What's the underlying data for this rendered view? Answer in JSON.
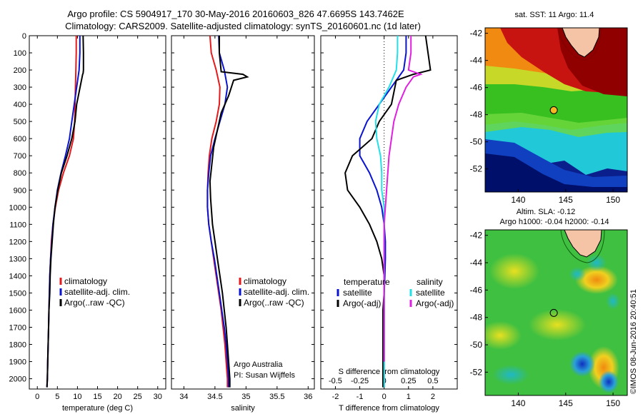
{
  "figure": {
    "title_line1": "Argo profile: CS 5904917_170 30-May-2016 20160603_826 47.6695S 143.7462E",
    "title_line2": "Climatology: CARS2009. Satellite-adjusted climatology: synTS_20160601.nc (1d later)",
    "credit": "©IMOS 08-Jun-2016 20:40:51",
    "colors": {
      "climatology": "#e41a1c",
      "satellite": "#0a14d0",
      "argo": "#000000",
      "satellite_s": "#22e0e8",
      "argo_s": "#e020e0"
    }
  },
  "chart_data": [
    {
      "type": "line",
      "xlabel": "temperature (deg C)",
      "xlim": [
        -2,
        32
      ],
      "xticks": [
        0,
        5,
        10,
        15,
        20,
        25,
        30
      ],
      "ylim": [
        2060,
        0
      ],
      "yticks": [
        0,
        100,
        200,
        300,
        400,
        500,
        600,
        700,
        800,
        900,
        1000,
        1100,
        1200,
        1300,
        1400,
        1500,
        1600,
        1700,
        1800,
        1900,
        2000
      ],
      "y_reversed": true,
      "legend_placement": "lower-left",
      "legend": [
        "climatology",
        "satellite-adj. clim.",
        "Argo(..raw -QC)"
      ],
      "series": [
        {
          "name": "climatology",
          "color": "#e41a1c",
          "x": [
            9.7,
            9.7,
            9.6,
            9.5,
            9.4,
            9.3,
            9.0,
            8.0,
            6.5,
            5.3,
            4.5,
            3.9,
            3.5,
            3.3,
            3.1,
            3.0,
            2.9,
            2.8,
            2.7,
            2.6,
            2.5,
            2.4
          ],
          "y": [
            0,
            100,
            200,
            300,
            400,
            500,
            600,
            700,
            800,
            900,
            1000,
            1100,
            1200,
            1300,
            1400,
            1500,
            1600,
            1700,
            1800,
            1900,
            2000,
            2050
          ]
        },
        {
          "name": "satellite-adj. clim.",
          "color": "#0a14d0",
          "x": [
            10.6,
            10.6,
            10.4,
            9.8,
            9.2,
            8.6,
            8.0,
            7.0,
            5.9,
            5.0,
            4.4,
            3.9,
            3.6,
            3.3,
            3.1,
            3.0,
            2.9,
            2.8,
            2.7,
            2.6,
            2.5,
            2.4
          ],
          "y": [
            0,
            100,
            200,
            300,
            400,
            500,
            600,
            700,
            800,
            900,
            1000,
            1100,
            1200,
            1300,
            1400,
            1500,
            1600,
            1700,
            1800,
            1900,
            2000,
            2050
          ]
        },
        {
          "name": "Argo(..raw -QC)",
          "color": "#000000",
          "x": [
            11.4,
            11.5,
            11.5,
            11.4,
            11.3,
            9.8,
            9.4,
            8.6,
            7.4,
            6.0,
            5.1,
            4.4,
            4.0,
            3.7,
            3.4,
            3.2,
            3.1,
            2.9,
            2.8,
            2.7,
            2.6,
            2.5,
            2.4
          ],
          "y": [
            0,
            100,
            200,
            220,
            225,
            400,
            500,
            600,
            700,
            800,
            900,
            1000,
            1100,
            1200,
            1300,
            1400,
            1500,
            1600,
            1700,
            1800,
            1900,
            2000,
            2050
          ]
        }
      ]
    },
    {
      "type": "line",
      "xlabel": "salinity",
      "xlim": [
        33.8,
        36.1
      ],
      "xticks": [
        34,
        34.5,
        35,
        35.5,
        36
      ],
      "ylim": [
        2060,
        0
      ],
      "y_reversed": true,
      "legend_placement": "lower-right",
      "legend": [
        "climatology",
        "satellite-adj. clim.",
        "Argo(..raw -QC)"
      ],
      "annotation": [
        "Argo Australia",
        "PI: Susan Wijffels"
      ],
      "series": [
        {
          "name": "climatology",
          "color": "#e41a1c",
          "x": [
            34.42,
            34.44,
            34.52,
            34.58,
            34.57,
            34.52,
            34.45,
            34.41,
            34.39,
            34.38,
            34.38,
            34.4,
            34.44,
            34.48,
            34.52,
            34.56,
            34.6,
            34.63,
            34.66,
            34.68,
            34.7,
            34.7
          ],
          "y": [
            0,
            100,
            200,
            300,
            400,
            500,
            600,
            700,
            800,
            900,
            1000,
            1100,
            1200,
            1300,
            1400,
            1500,
            1600,
            1700,
            1800,
            1900,
            2000,
            2050
          ]
        },
        {
          "name": "satellite-adj. clim.",
          "color": "#0a14d0",
          "x": [
            34.56,
            34.57,
            34.65,
            34.7,
            34.66,
            34.58,
            34.5,
            34.43,
            34.4,
            34.38,
            34.38,
            34.4,
            34.44,
            34.49,
            34.53,
            34.57,
            34.61,
            34.65,
            34.68,
            34.7,
            34.72,
            34.72
          ],
          "y": [
            0,
            100,
            200,
            300,
            400,
            500,
            600,
            700,
            800,
            900,
            1000,
            1100,
            1200,
            1300,
            1400,
            1500,
            1600,
            1700,
            1800,
            1900,
            2000,
            2050
          ]
        },
        {
          "name": "Argo(..raw -QC)",
          "color": "#000000",
          "x": [
            34.57,
            34.57,
            34.6,
            34.95,
            35.02,
            34.8,
            34.72,
            34.6,
            34.54,
            34.48,
            34.45,
            34.42,
            34.43,
            34.46,
            34.5,
            34.54,
            34.58,
            34.62,
            34.65,
            34.68,
            34.7,
            34.72,
            34.74,
            34.74
          ],
          "y": [
            0,
            100,
            210,
            225,
            240,
            260,
            350,
            450,
            550,
            650,
            750,
            850,
            950,
            1100,
            1200,
            1300,
            1400,
            1500,
            1600,
            1700,
            1800,
            1900,
            2000,
            2050
          ]
        }
      ]
    },
    {
      "type": "line",
      "xlabel": "T difference from climatology",
      "xlabel_top": "S difference from climatology",
      "xlim": [
        -2.6,
        3.0
      ],
      "xticks": [
        -2,
        -1,
        0,
        1,
        2
      ],
      "xticks_top_labels": [
        "-0.5",
        "-0.25",
        "0",
        "0.25",
        "0.5"
      ],
      "xticks_top_at": [
        -2,
        -1,
        0,
        1,
        2
      ],
      "ylim": [
        2060,
        0
      ],
      "y_reversed": true,
      "zero_line": "dotted",
      "legend_placement": "lower-center",
      "legend_temperature_title": "temperature",
      "legend_salinity_title": "salinity",
      "legend_temperature": [
        "satellite",
        "Argo(-adj)"
      ],
      "legend_salinity": [
        "satellite",
        "Argo(-adj)"
      ],
      "series": [
        {
          "name": "temperature satellite",
          "color": "#0a14d0",
          "x": [
            0.9,
            0.9,
            0.8,
            0.3,
            -0.2,
            -0.7,
            -1.0,
            -1.0,
            -0.6,
            -0.3,
            -0.1,
            0.0,
            0.05,
            0.05,
            0.03,
            0.0,
            0.0,
            0.0,
            0.0,
            0.0,
            0.0,
            0.0
          ],
          "y": [
            0,
            100,
            200,
            300,
            400,
            500,
            600,
            700,
            800,
            900,
            1000,
            1100,
            1200,
            1300,
            1400,
            1500,
            1600,
            1700,
            1800,
            1900,
            2000,
            2050
          ]
        },
        {
          "name": "temperature Argo(-adj)",
          "color": "#000000",
          "x": [
            1.7,
            1.8,
            1.9,
            1.2,
            0.5,
            0.3,
            -0.2,
            -0.5,
            -1.3,
            -1.6,
            -1.5,
            -1.0,
            -0.6,
            -0.3,
            -0.1,
            0.0,
            0.0,
            -0.05,
            -0.05,
            -0.05,
            -0.05,
            -0.05,
            -0.05
          ],
          "y": [
            0,
            100,
            200,
            225,
            260,
            400,
            500,
            600,
            700,
            800,
            900,
            1000,
            1100,
            1200,
            1300,
            1400,
            1500,
            1600,
            1700,
            1800,
            1900,
            2000,
            2050
          ]
        },
        {
          "name": "salinity satellite",
          "color": "#22e0e8",
          "x": [
            0.55,
            0.55,
            0.5,
            0.2,
            -0.2,
            -0.35,
            -0.3,
            -0.15,
            -0.1,
            -0.1,
            0.0,
            0.0,
            0.0,
            0.0,
            0.0,
            0.0,
            0.0,
            0.0,
            0.0,
            0.0,
            0.0,
            0.0
          ],
          "y": [
            0,
            100,
            200,
            300,
            400,
            500,
            600,
            700,
            800,
            900,
            1000,
            1100,
            1200,
            1300,
            1400,
            1500,
            1600,
            1700,
            1800,
            1900,
            2000,
            2050
          ]
        },
        {
          "name": "salinity Argo(-adj)",
          "color": "#e020e0",
          "x": [
            1.1,
            1.1,
            1.0,
            1.5,
            1.2,
            0.9,
            0.6,
            0.4,
            0.3,
            0.2,
            0.15,
            0.1,
            0.05,
            0.0,
            0.0,
            0.0,
            0.0,
            0.0,
            0.0,
            0.0,
            0.0,
            0.0
          ],
          "y": [
            0,
            100,
            200,
            225,
            240,
            300,
            400,
            500,
            600,
            700,
            800,
            900,
            1000,
            1100,
            1200,
            1300,
            1400,
            1500,
            1600,
            1700,
            1800,
            1900
          ]
        }
      ]
    },
    {
      "type": "heatmap",
      "title": "sat. SST: 11  Argo: 11.4",
      "xticks": [
        140,
        145,
        150
      ],
      "yticks": [
        -42,
        -44,
        -46,
        -48,
        -50,
        -52
      ],
      "xlim": [
        136.5,
        151.5
      ],
      "ylim": [
        -53.7,
        -41.6
      ],
      "marker": {
        "lon": 143.7462,
        "lat": -47.6695,
        "color": "#f5b820"
      }
    },
    {
      "type": "heatmap",
      "title_line1": "Altim. SLA: -0.12",
      "title_line2": "Argo h1000: -0.04 h2000: -0.14",
      "xticks": [
        140,
        145,
        150
      ],
      "yticks": [
        -42,
        -44,
        -46,
        -48,
        -50,
        -52
      ],
      "xlim": [
        136.5,
        151.5
      ],
      "ylim": [
        -53.7,
        -41.6
      ],
      "marker": {
        "lon": 143.7462,
        "lat": -47.6695,
        "color": "none"
      }
    }
  ]
}
